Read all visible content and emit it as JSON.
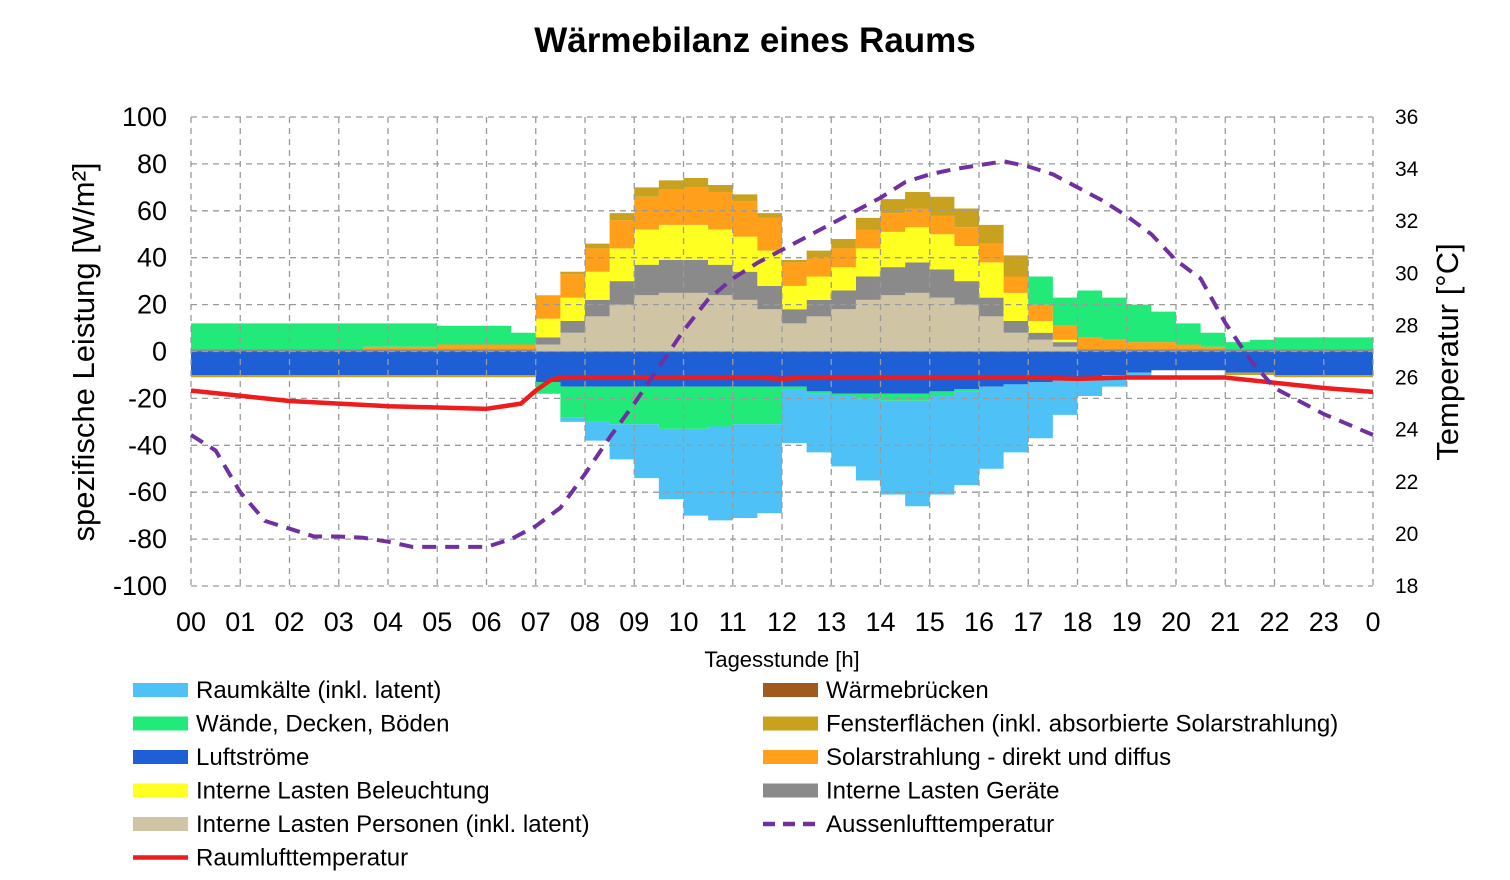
{
  "chart_data": {
    "type": "area",
    "title": "Wärmebilanz eines Raums",
    "xlabel": "Tagesstunde [h]",
    "ylabel": "spezifische Leistung [W/m²]",
    "y2label": "Temperatur  [°C]",
    "ylim": [
      -100,
      100
    ],
    "y2lim": [
      18,
      36
    ],
    "yticks": [
      "100",
      "80",
      "60",
      "40",
      "20",
      "0",
      "-20",
      "-40",
      "-60",
      "-80",
      "-100"
    ],
    "y2ticks": [
      "36",
      "34",
      "32",
      "30",
      "28",
      "26",
      "24",
      "22",
      "20",
      "18"
    ],
    "xticks": [
      "00",
      "01",
      "02",
      "03",
      "04",
      "05",
      "06",
      "07",
      "08",
      "09",
      "10",
      "11",
      "12",
      "13",
      "14",
      "15",
      "16",
      "17",
      "18",
      "19",
      "20",
      "21",
      "22",
      "23",
      "0"
    ],
    "grid": true,
    "legend_position": "bottom",
    "hours": [
      0,
      0.5,
      1,
      1.5,
      2,
      2.5,
      3,
      3.5,
      4,
      4.5,
      5,
      5.5,
      6,
      6.5,
      7,
      7.5,
      8,
      8.5,
      9,
      9.5,
      10,
      10.5,
      11,
      11.5,
      12,
      12.5,
      13,
      13.5,
      14,
      14.5,
      15,
      15.5,
      16,
      16.5,
      17,
      17.5,
      18,
      18.5,
      19,
      19.5,
      20,
      20.5,
      21,
      21.5,
      22,
      22.5,
      23,
      23.5
    ],
    "positive_series": [
      {
        "name": "Interne Lasten Personen (inkl. latent)",
        "color": "#cfc5a5",
        "values": [
          0,
          0,
          0,
          0,
          0,
          0,
          0,
          0,
          0,
          0,
          0,
          0,
          0,
          0,
          3,
          8,
          15,
          20,
          24,
          25,
          25,
          24,
          22,
          18,
          12,
          15,
          18,
          22,
          24,
          25,
          23,
          20,
          15,
          8,
          5,
          2,
          0,
          0,
          0,
          0,
          0,
          0,
          0,
          0,
          0,
          0,
          0,
          0
        ]
      },
      {
        "name": "Interne Lasten Geräte",
        "color": "#8a8a8a",
        "values": [
          1,
          1,
          1,
          1,
          1,
          1,
          1,
          1,
          1,
          1,
          1,
          1,
          1,
          1,
          3,
          5,
          7,
          10,
          13,
          14,
          14,
          13,
          12,
          10,
          6,
          7,
          8,
          10,
          12,
          13,
          12,
          10,
          8,
          5,
          3,
          2,
          1,
          1,
          1,
          1,
          1,
          1,
          1,
          1,
          1,
          1,
          1,
          1
        ]
      },
      {
        "name": "Interne Lasten Beleuchtung",
        "color": "#ffff22",
        "values": [
          0,
          0,
          0,
          0,
          0,
          0,
          0,
          0,
          0,
          0,
          0,
          0,
          0,
          0,
          8,
          10,
          12,
          14,
          15,
          15,
          15,
          15,
          15,
          15,
          10,
          10,
          10,
          12,
          15,
          15,
          15,
          15,
          15,
          12,
          5,
          1,
          0,
          0,
          0,
          0,
          0,
          0,
          0,
          0,
          0,
          0,
          0,
          0
        ]
      },
      {
        "name": "Solarstrahlung - direkt und diffus",
        "color": "#ff9f1a",
        "values": [
          0,
          0,
          0,
          0,
          0,
          0,
          0,
          1,
          1,
          1,
          2,
          2,
          2,
          2,
          10,
          10,
          10,
          12,
          14,
          15,
          16,
          16,
          15,
          14,
          10,
          8,
          8,
          8,
          8,
          8,
          8,
          8,
          8,
          7,
          7,
          6,
          5,
          4,
          3,
          3,
          2,
          1,
          0,
          0,
          0,
          0,
          0,
          0
        ]
      },
      {
        "name": "Fensterflächen (inkl. absorbierte Solarstrahlung)",
        "color": "#c8a11e",
        "values": [
          0,
          0,
          0,
          0,
          0,
          0,
          0,
          0,
          0,
          0,
          0,
          0,
          0,
          0,
          0,
          1,
          2,
          3,
          4,
          4,
          4,
          3,
          3,
          2,
          1,
          3,
          4,
          5,
          6,
          7,
          8,
          8,
          8,
          9,
          0,
          0,
          0,
          0,
          0,
          0,
          0,
          0,
          0,
          0,
          0,
          0,
          0,
          0
        ]
      },
      {
        "name": "Wände, Decken, Böden",
        "color": "#21ea78",
        "values": [
          11,
          11,
          11,
          11,
          11,
          11,
          11,
          10,
          10,
          10,
          8,
          8,
          8,
          5,
          0,
          0,
          0,
          0,
          0,
          0,
          0,
          0,
          0,
          0,
          0,
          0,
          0,
          0,
          0,
          0,
          0,
          0,
          0,
          0,
          12,
          12,
          20,
          18,
          16,
          13,
          9,
          6,
          3,
          4,
          5,
          5,
          5,
          5
        ]
      }
    ],
    "negative_series": [
      {
        "name": "Luftströme",
        "color": "#1f5fd6",
        "values": [
          -10,
          -10,
          -10,
          -10,
          -10,
          -10,
          -10,
          -10,
          -10,
          -10,
          -10,
          -10,
          -10,
          -10,
          -13,
          -15,
          -15,
          -15,
          -15,
          -15,
          -15,
          -15,
          -15,
          -15,
          -15,
          -17,
          -18,
          -18,
          -18,
          -18,
          -17,
          -16,
          -15,
          -14,
          -13,
          -12,
          -11,
          -10,
          -9,
          -8,
          -8,
          -8,
          -9,
          -9,
          -10,
          -10,
          -10,
          -10
        ]
      },
      {
        "name": "Fensterflächen (inkl. absorbierte Solarstrahlung)",
        "color": "#c8a11e",
        "values": [
          -1,
          -1,
          -1,
          -1,
          -1,
          -1,
          -1,
          -1,
          -1,
          -1,
          -1,
          -1,
          -1,
          -1,
          0,
          0,
          0,
          0,
          0,
          0,
          0,
          0,
          0,
          0,
          0,
          0,
          0,
          0,
          0,
          0,
          0,
          0,
          0,
          0,
          0,
          0,
          0,
          0,
          0,
          0,
          0,
          0,
          -1,
          -1,
          -1,
          -1,
          -1,
          -1
        ]
      },
      {
        "name": "Wände, Decken, Böden",
        "color": "#21ea78",
        "values": [
          0,
          0,
          0,
          0,
          0,
          0,
          0,
          0,
          0,
          0,
          0,
          0,
          0,
          0,
          -5,
          -13,
          -15,
          -16,
          -16,
          -18,
          -18,
          -17,
          -16,
          -16,
          -1,
          -1,
          -1,
          -2,
          -3,
          -3,
          -2,
          -1,
          0,
          0,
          0,
          0,
          0,
          0,
          0,
          0,
          0,
          0,
          0,
          0,
          0,
          0,
          0,
          0
        ]
      },
      {
        "name": "Raumkälte (inkl. latent)",
        "color": "#4ec2f7",
        "values": [
          0,
          0,
          0,
          0,
          0,
          0,
          0,
          0,
          0,
          0,
          0,
          0,
          0,
          0,
          0,
          -2,
          -8,
          -15,
          -23,
          -30,
          -37,
          -40,
          -40,
          -38,
          -23,
          -25,
          -30,
          -35,
          -40,
          -45,
          -42,
          -40,
          -35,
          -29,
          -24,
          -15,
          -8,
          -5,
          -2,
          0,
          0,
          0,
          0,
          0,
          0,
          0,
          0,
          0
        ]
      }
    ],
    "lines": [
      {
        "name": "Raumlufttemperatur",
        "color": "#ee1c1c",
        "axis": "right",
        "x": [
          0,
          1,
          2,
          3,
          4,
          5,
          6,
          6.7,
          7,
          7.3,
          7.5,
          8,
          9,
          10,
          11,
          11.5,
          12,
          12.5,
          13,
          14,
          15,
          16,
          17,
          18,
          19,
          20,
          21,
          21.5,
          22,
          23,
          24
        ],
        "y": [
          25.5,
          25.3,
          25.1,
          25.0,
          24.9,
          24.85,
          24.8,
          25.0,
          25.5,
          25.9,
          26.0,
          26.0,
          26.0,
          26.0,
          26.0,
          26.0,
          25.95,
          26.0,
          26.0,
          26.0,
          26.0,
          26.0,
          26.0,
          25.95,
          26.0,
          26.0,
          26.0,
          25.9,
          25.8,
          25.6,
          25.45
        ]
      },
      {
        "name": "Aussenlufttemperatur",
        "color": "#7030a0",
        "dashed": true,
        "axis": "right",
        "x": [
          0,
          0.5,
          1,
          1.5,
          2,
          2.5,
          3,
          3.5,
          4,
          4.5,
          5,
          5.5,
          6,
          6.5,
          7,
          7.5,
          8,
          8.5,
          9,
          9.5,
          10,
          10.5,
          11,
          11.5,
          12,
          12.5,
          13,
          13.5,
          14,
          14.5,
          15,
          15.5,
          16,
          16.5,
          17,
          17.5,
          18,
          18.5,
          19,
          19.5,
          20,
          20.5,
          21,
          21.5,
          22,
          22.5,
          23,
          23.5,
          24
        ],
        "y": [
          23.8,
          23.2,
          21.6,
          20.5,
          20.2,
          19.9,
          19.9,
          19.85,
          19.7,
          19.5,
          19.5,
          19.5,
          19.5,
          19.8,
          20.3,
          21.0,
          22.3,
          23.7,
          25.0,
          26.4,
          27.8,
          29.0,
          29.8,
          30.4,
          30.9,
          31.4,
          31.9,
          32.4,
          32.9,
          33.5,
          33.8,
          34.0,
          34.15,
          34.3,
          34.1,
          33.8,
          33.3,
          32.8,
          32.2,
          31.5,
          30.5,
          29.8,
          28.1,
          26.7,
          25.6,
          25.1,
          24.6,
          24.2,
          23.8
        ]
      }
    ],
    "legend": [
      {
        "label": "Raumkälte (inkl. latent)",
        "color": "#4ec2f7",
        "kind": "area"
      },
      {
        "label": "Wärmebrücken",
        "color": "#a05a1e",
        "kind": "area"
      },
      {
        "label": "Wände, Decken, Böden",
        "color": "#21ea78",
        "kind": "area"
      },
      {
        "label": "Fensterflächen (inkl. absorbierte Solarstrahlung)",
        "color": "#c8a11e",
        "kind": "area"
      },
      {
        "label": "Luftströme",
        "color": "#1f5fd6",
        "kind": "area"
      },
      {
        "label": "Solarstrahlung - direkt und diffus",
        "color": "#ff9f1a",
        "kind": "area"
      },
      {
        "label": "Interne Lasten Beleuchtung",
        "color": "#ffff22",
        "kind": "area"
      },
      {
        "label": "Interne Lasten Geräte",
        "color": "#8a8a8a",
        "kind": "area"
      },
      {
        "label": "Interne Lasten Personen (inkl. latent)",
        "color": "#cfc5a5",
        "kind": "area"
      },
      {
        "label": "Aussenlufttemperatur",
        "color": "#7030a0",
        "kind": "dashed"
      },
      {
        "label": "Raumlufttemperatur",
        "color": "#ee1c1c",
        "kind": "line"
      }
    ]
  }
}
